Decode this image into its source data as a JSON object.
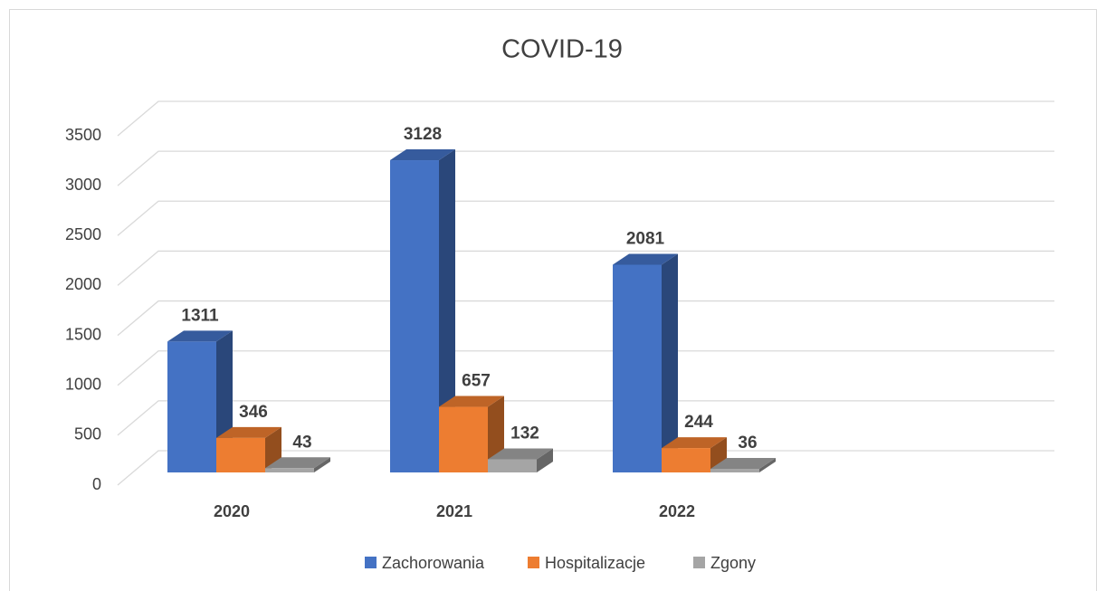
{
  "chart_data": {
    "type": "bar",
    "title": "COVID-19",
    "categories": [
      "2020",
      "2021",
      "2022"
    ],
    "series": [
      {
        "name": "Zachorowania",
        "color": "#4472c4",
        "values": [
          1311,
          3128,
          2081
        ]
      },
      {
        "name": "Hospitalizacje",
        "color": "#ed7d31",
        "values": [
          346,
          657,
          244
        ]
      },
      {
        "name": "Zgony",
        "color": "#a5a5a5",
        "values": [
          43,
          132,
          36
        ]
      }
    ],
    "ylim": [
      0,
      3500
    ],
    "yticks": [
      0,
      500,
      1000,
      1500,
      2000,
      2500,
      3000,
      3500
    ],
    "grid": true,
    "legend": "bottom"
  }
}
